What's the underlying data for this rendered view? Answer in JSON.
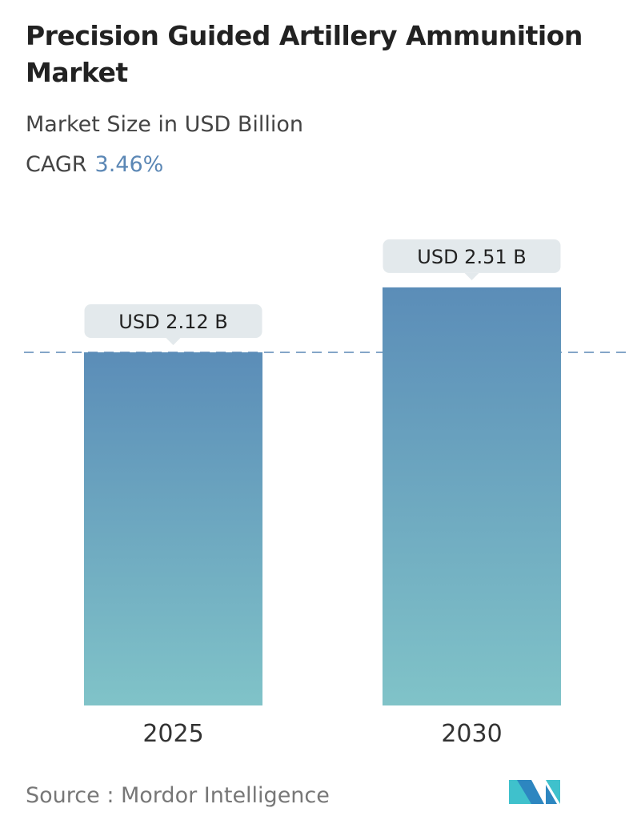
{
  "header": {
    "title": "Precision Guided Artillery Ammunition Market",
    "subtitle": "Market Size in USD Billion",
    "cagr_label": "CAGR",
    "cagr_value": "3.46%"
  },
  "chart_data": {
    "type": "bar",
    "categories": [
      "2025",
      "2030"
    ],
    "values": [
      2.12,
      2.51
    ],
    "data_labels": [
      "USD 2.12 B",
      "USD 2.51 B"
    ],
    "ylabel": "Market Size in USD Billion",
    "ylim": [
      0,
      2.6
    ],
    "grid": false,
    "reference_line": 2.12,
    "colors": {
      "bar_top": "#5b8db8",
      "bar_bottom": "#80c3c8",
      "label_bg": "#e3e9ec",
      "ref_line": "#5b87b5"
    }
  },
  "footer": {
    "source": "Source :  Mordor Intelligence",
    "logo_text": "MI"
  }
}
